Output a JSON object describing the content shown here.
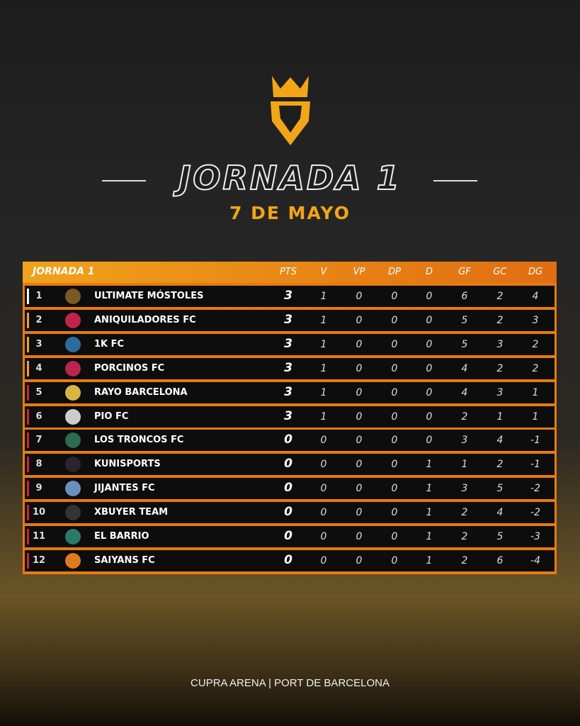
{
  "header": {
    "title": "JORNADA 1",
    "date": "7 DE MAYO"
  },
  "table": {
    "columns": [
      "JORNADA 1",
      "PTS",
      "V",
      "VP",
      "DP",
      "D",
      "GF",
      "GC",
      "DG"
    ],
    "rows": [
      [
        "1",
        "ULTIMATE MÓSTOLES",
        "3",
        "1",
        "0",
        "0",
        "0",
        "6",
        "2",
        "4"
      ],
      [
        "2",
        "ANIQUILADORES FC",
        "3",
        "1",
        "0",
        "0",
        "0",
        "5",
        "2",
        "3"
      ],
      [
        "3",
        "1K FC",
        "3",
        "1",
        "0",
        "0",
        "0",
        "5",
        "3",
        "2"
      ],
      [
        "4",
        "PORCINOS FC",
        "3",
        "1",
        "0",
        "0",
        "0",
        "4",
        "2",
        "2"
      ],
      [
        "5",
        "RAYO BARCELONA",
        "3",
        "1",
        "0",
        "0",
        "0",
        "4",
        "3",
        "1"
      ],
      [
        "6",
        "PIO FC",
        "3",
        "1",
        "0",
        "0",
        "0",
        "2",
        "1",
        "1"
      ],
      [
        "7",
        "LOS TRONCOS FC",
        "0",
        "0",
        "0",
        "0",
        "0",
        "3",
        "4",
        "-1"
      ],
      [
        "8",
        "KUNISPORTS",
        "0",
        "0",
        "0",
        "0",
        "1",
        "1",
        "2",
        "-1"
      ],
      [
        "9",
        "JIJANTES FC",
        "0",
        "0",
        "0",
        "0",
        "1",
        "3",
        "5",
        "-2"
      ],
      [
        "10",
        "XBUYER TEAM",
        "0",
        "0",
        "0",
        "0",
        "1",
        "2",
        "4",
        "-2"
      ],
      [
        "11",
        "EL BARRIO",
        "0",
        "0",
        "0",
        "0",
        "1",
        "2",
        "5",
        "-3"
      ],
      [
        "12",
        "SAIYANS FC",
        "0",
        "0",
        "0",
        "0",
        "1",
        "2",
        "6",
        "-4"
      ]
    ]
  },
  "footer": {
    "venue": "CUPRA ARENA | PORT DE BARCELONA"
  }
}
